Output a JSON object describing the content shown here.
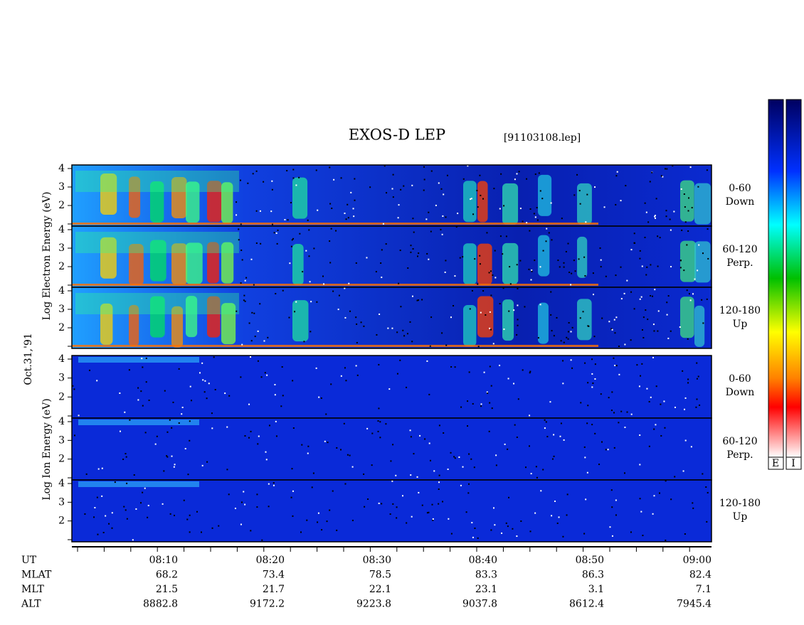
{
  "header": {
    "title": "EXOS-D LEP",
    "file": "[91103108.lep]"
  },
  "left_labels": {
    "electron": "Log  Electron  Energy  (eV)",
    "date": "Oct.31,'91",
    "ion": "Log  Ion  Energy  (eV)"
  },
  "panels": [
    {
      "angle": "0-60",
      "direction": "Down"
    },
    {
      "angle": "60-120",
      "direction": "Perp."
    },
    {
      "angle": "120-180",
      "direction": "Up"
    },
    {
      "angle": "0-60",
      "direction": "Down"
    },
    {
      "angle": "60-120",
      "direction": "Perp."
    },
    {
      "angle": "120-180",
      "direction": "Up"
    }
  ],
  "y_tick_labels": [
    "4",
    "3",
    "2"
  ],
  "colorbar_labels": [
    "E",
    "I"
  ],
  "time_axis": {
    "rows": [
      {
        "name": "UT",
        "values": [
          "08:10",
          "08:20",
          "08:30",
          "08:40",
          "08:50",
          "09:00"
        ]
      },
      {
        "name": "MLAT",
        "values": [
          "68.2",
          "73.4",
          "78.5",
          "83.3",
          "86.3",
          "82.4"
        ]
      },
      {
        "name": "MLT",
        "values": [
          "21.5",
          "21.7",
          "22.1",
          "23.1",
          "3.1",
          "7.1"
        ]
      },
      {
        "name": "ALT",
        "values": [
          "8882.8",
          "9172.2",
          "9223.8",
          "9037.8",
          "8612.4",
          "7945.4"
        ]
      }
    ]
  }
}
